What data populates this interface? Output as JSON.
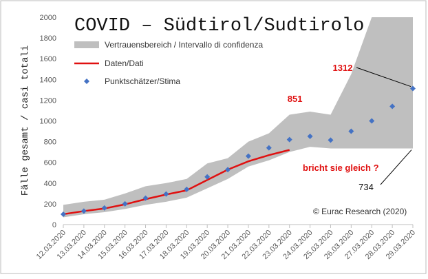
{
  "chart_data": {
    "type": "line",
    "title": "COVID – Südtirol/Sudtirolo",
    "ylabel": "Fälle gesamt / casi totali",
    "categories": [
      "12.03.2020",
      "13.03.2020",
      "14.03.2020",
      "15.03.2020",
      "16.03.2020",
      "17.03.2020",
      "18.03.2020",
      "19.03.2020",
      "20.03.2020",
      "21.03.2020",
      "22.03.2020",
      "23.03.2020",
      "24.03.2020",
      "25.03.2020",
      "26.03.2020",
      "27.03.2020",
      "28.03.2020",
      "29.03.2020"
    ],
    "band": {
      "name": "Vertrauensbereich / Intervallo di confidenza",
      "color": "#bfbfbf",
      "upper": [
        190,
        220,
        240,
        300,
        370,
        400,
        440,
        590,
        640,
        800,
        880,
        1060,
        1090,
        1060,
        1450,
        2000,
        2000,
        2000
      ],
      "lower": [
        70,
        100,
        120,
        150,
        190,
        220,
        260,
        350,
        440,
        560,
        620,
        700,
        750,
        734,
        734,
        734,
        734,
        734
      ],
      "lower_value_labels": [
        null,
        null,
        null,
        null,
        null,
        null,
        null,
        null,
        null,
        null,
        null,
        null,
        null,
        null,
        null,
        null,
        null,
        "734"
      ]
    },
    "series": [
      {
        "name": "Daten/Dati",
        "color": "#e01010",
        "style": "line",
        "values": [
          100,
          130,
          155,
          195,
          245,
          290,
          330,
          430,
          530,
          610,
          670,
          720,
          null,
          null,
          null,
          null,
          null,
          null
        ]
      },
      {
        "name": "Punktschätzer/Stima",
        "color": "#4472c4",
        "style": "marker",
        "values": [
          100,
          130,
          160,
          200,
          255,
          295,
          340,
          460,
          530,
          660,
          740,
          820,
          851,
          815,
          900,
          1000,
          1140,
          1312
        ],
        "value_labels": [
          null,
          null,
          null,
          null,
          null,
          null,
          null,
          null,
          null,
          null,
          null,
          null,
          "851",
          null,
          null,
          null,
          null,
          "1312"
        ]
      }
    ],
    "annotations": [
      {
        "text": "bricht sie gleich ?"
      },
      {
        "text": "© Eurac Research (2020)"
      }
    ],
    "ylim": [
      0,
      2000
    ],
    "yticks": [
      0,
      200,
      400,
      600,
      800,
      1000,
      1200,
      1400,
      1600,
      1800,
      2000
    ],
    "grid": false
  }
}
